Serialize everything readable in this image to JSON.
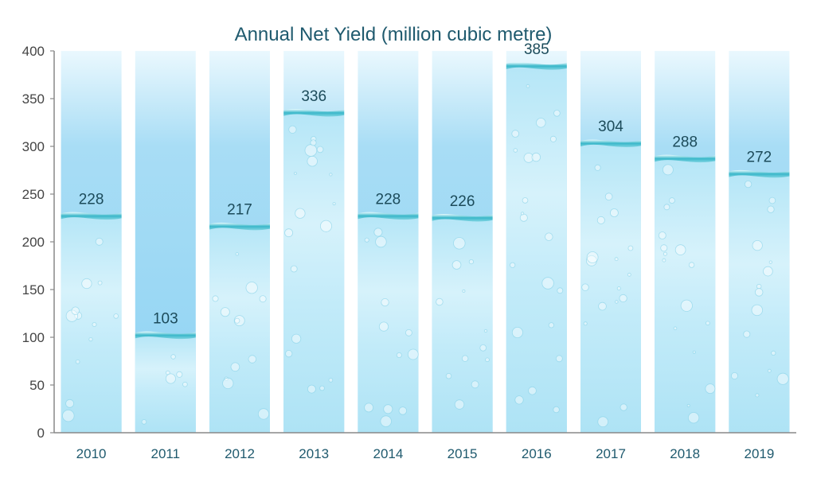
{
  "chart_data": {
    "type": "bar",
    "title": "Annual Net Yield (million cubic metre)",
    "xlabel": "",
    "ylabel": "",
    "categories": [
      "2010",
      "2011",
      "2012",
      "2013",
      "2014",
      "2015",
      "2016",
      "2017",
      "2018",
      "2019"
    ],
    "values": [
      228,
      103,
      217,
      336,
      228,
      226,
      385,
      304,
      288,
      272
    ],
    "ylim": [
      0,
      400
    ],
    "yticks": [
      "0",
      "50",
      "100",
      "150",
      "200",
      "250",
      "300",
      "350",
      "400"
    ],
    "grid": false,
    "legend": "none",
    "colors": {
      "empty_top": "#8fd3f3",
      "empty_fade": "#eaf8fe",
      "water_light": "#dff5fc",
      "water_mid": "#b5e6f7",
      "surface": "#3ab7c9",
      "axis": "#888888"
    }
  }
}
